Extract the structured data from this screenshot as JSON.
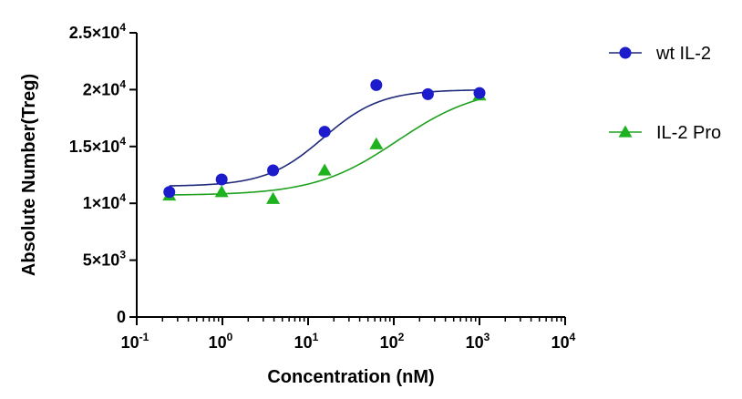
{
  "chart_data": {
    "type": "scatter",
    "xlabel": "Concentration (nM)",
    "ylabel": "Absolute Number(Treg)",
    "x_scale": "log",
    "xlim": [
      0.1,
      10000
    ],
    "ylim": [
      0,
      25000
    ],
    "x_ticks": [
      {
        "value": 0.1,
        "base": "10",
        "exp": "-1"
      },
      {
        "value": 1,
        "base": "10",
        "exp": "0"
      },
      {
        "value": 10,
        "base": "10",
        "exp": "1"
      },
      {
        "value": 100,
        "base": "10",
        "exp": "2"
      },
      {
        "value": 1000,
        "base": "10",
        "exp": "3"
      },
      {
        "value": 10000,
        "base": "10",
        "exp": "4"
      }
    ],
    "y_ticks": [
      {
        "value": 0,
        "base": "0",
        "exp": ""
      },
      {
        "value": 5000,
        "base": "5×10",
        "exp": "3"
      },
      {
        "value": 10000,
        "base": "1×10",
        "exp": "4"
      },
      {
        "value": 15000,
        "base": "1.5×10",
        "exp": "4"
      },
      {
        "value": 20000,
        "base": "2×10",
        "exp": "4"
      },
      {
        "value": 25000,
        "base": "2.5×10",
        "exp": "4"
      }
    ],
    "legend_position": "right",
    "series": [
      {
        "name": "wt IL-2",
        "marker": "circle",
        "color": "#1c1ccc",
        "fit_color": "#1f2a7a",
        "x": [
          0.24,
          0.98,
          3.9,
          15.6,
          62.5,
          250,
          1000
        ],
        "y": [
          11000,
          12100,
          12900,
          16300,
          20400,
          19600,
          19700
        ],
        "fit": {
          "bottom": 11500,
          "top": 20000,
          "ec50": 15,
          "hill": 1.3
        }
      },
      {
        "name": "IL-2 Pro",
        "marker": "triangle",
        "color": "#1fb21f",
        "fit_color": "#1fa01f",
        "x": [
          0.24,
          0.98,
          3.9,
          15.6,
          62.5,
          1000
        ],
        "y": [
          10700,
          11000,
          10400,
          12900,
          15200,
          19500
        ],
        "fit": {
          "bottom": 10700,
          "top": 20300,
          "ec50": 110,
          "hill": 0.9
        }
      }
    ]
  }
}
